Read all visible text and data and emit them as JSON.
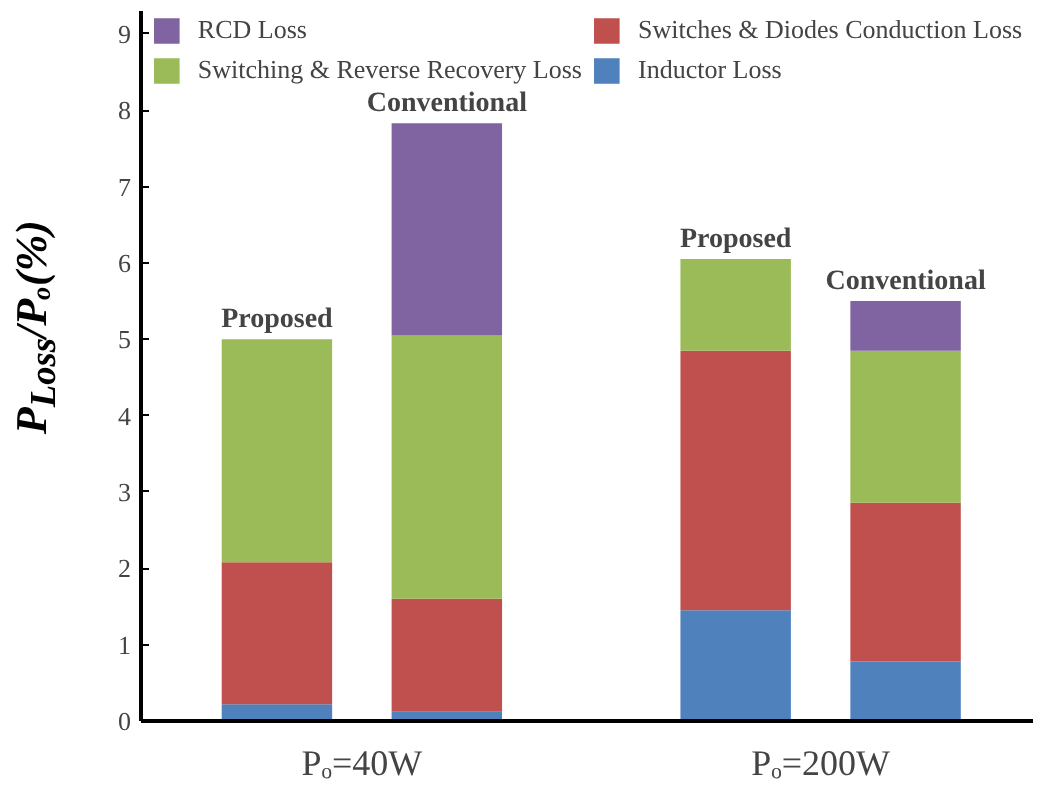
{
  "chart_data": {
    "type": "bar",
    "stacked": true,
    "ylabel": "P$_{Loss}$/Pₒ(%)",
    "categories": [
      "Proposed",
      "Conventional",
      "Proposed",
      "Conventional"
    ],
    "series": [
      {
        "name": "Inductor Loss",
        "color": "#4f81bd",
        "values": [
          0.22,
          0.12,
          1.45,
          0.78
        ]
      },
      {
        "name": "Switches & Diodes Conduction Loss",
        "color": "#c0504d",
        "values": [
          1.86,
          1.48,
          3.4,
          2.08
        ]
      },
      {
        "name": "Switching & Reverse Recovery Loss",
        "color": "#9bbb59",
        "values": [
          2.92,
          3.45,
          1.2,
          1.99
        ]
      },
      {
        "name": "RCD Loss",
        "color": "#8064a2",
        "values": [
          null,
          2.78,
          null,
          0.65
        ]
      }
    ],
    "annotations": [
      "Pₒ=40W",
      "Pₒ=200W"
    ],
    "ylim": [
      0,
      9.3
    ],
    "yticks": [
      0,
      1,
      2,
      3,
      4,
      5,
      6,
      7,
      8,
      9
    ],
    "grid": false,
    "legend": "top"
  }
}
